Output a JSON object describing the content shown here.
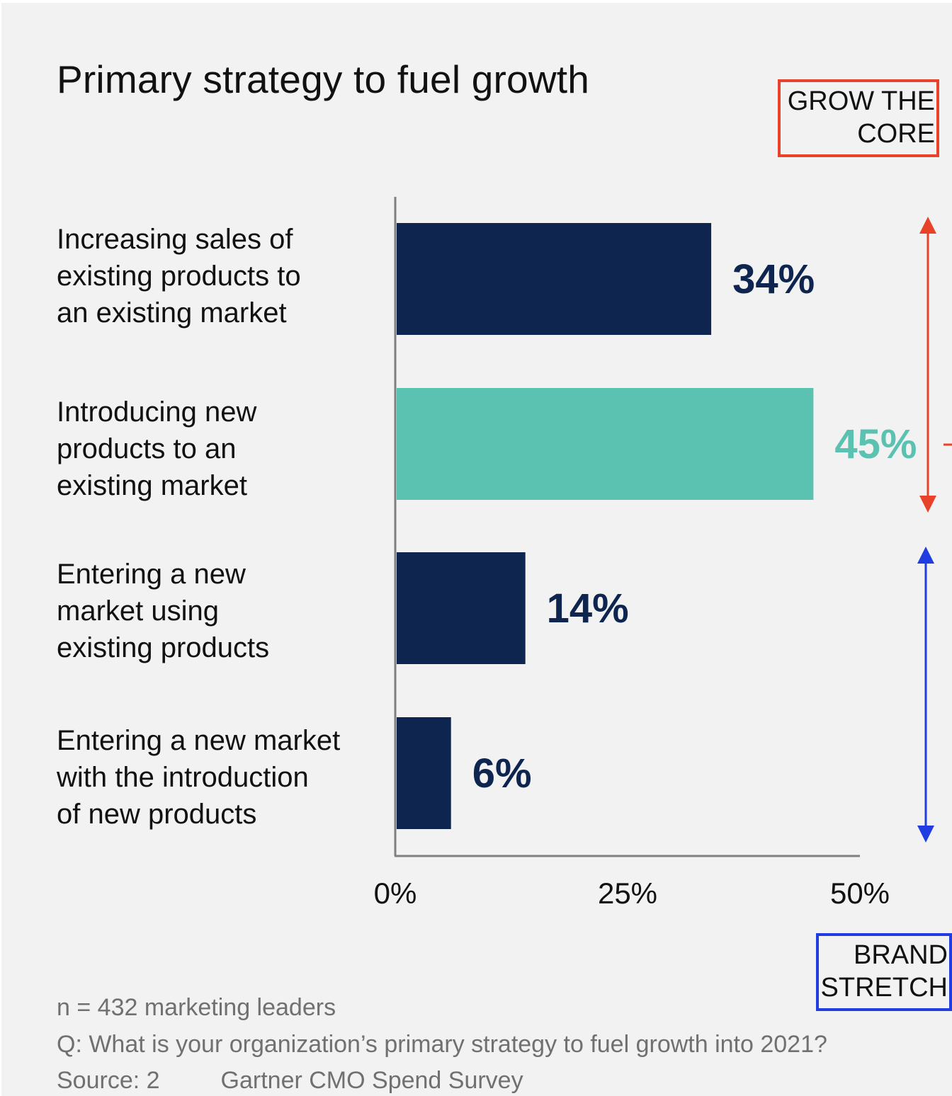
{
  "chart_data": {
    "type": "bar",
    "orientation": "horizontal",
    "title": "Primary strategy to fuel growth",
    "categories": [
      "Increasing sales of\nexisting products to\nan existing market",
      "Introducing new\nproducts to an\nexisting market",
      "Entering a new\nmarket using\nexisting products",
      "Entering a new market\nwith the introduction\nof new products"
    ],
    "values": [
      34,
      45,
      14,
      6
    ],
    "data_labels": [
      "34%",
      "45%",
      "14%",
      "6%"
    ],
    "xlim": [
      0,
      50
    ],
    "xticks": [
      0,
      25,
      50
    ],
    "xtick_labels": [
      "0%",
      "25%",
      "50%"
    ],
    "grid": false,
    "legend": "none",
    "colors": {
      "bar": "#0e2550",
      "highlight_bar": "#5bc2b1",
      "highlight_index": 1,
      "grow_the_core": "#e8432a",
      "brand_stretch": "#1f3de0"
    },
    "annotations": {
      "grow_the_core": {
        "label": "GROW THE\nCORE",
        "spans_categories": [
          0,
          1
        ]
      },
      "brand_stretch": {
        "label": "BRAND\nSTRETCH",
        "spans_categories": [
          2,
          3
        ]
      }
    }
  },
  "footer": {
    "sample": "n = 432 marketing leaders",
    "question": "Q: What is your organization’s primary strategy to fuel growth into 2021?",
    "source_prefix": "Source: 2",
    "source_rest": "Gartner CMO Spend Survey"
  }
}
